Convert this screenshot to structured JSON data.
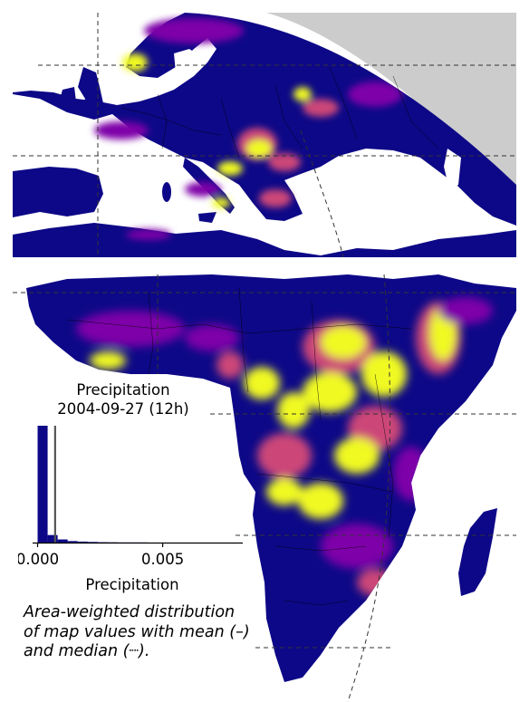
{
  "maps": {
    "top_region": "Europe",
    "bottom_region": "Africa",
    "colormap": "plasma",
    "colors": {
      "low": "#0d0887",
      "mid": "#7e03a8",
      "high": "#cc4778",
      "peak": "#f0f921",
      "ocean": "#ffffff",
      "outside_globe": "#cccccc",
      "borders": "#000000",
      "graticule": "#333333"
    }
  },
  "histogram": {
    "title_line1": "Precipitation",
    "title_line2": "2004-09-27 (12h)",
    "xlabel": "Precipitation",
    "tick_labels": [
      "0.000",
      "0.005"
    ]
  },
  "caption": {
    "line1": "Area-weighted distribution",
    "line2": "of map values with mean (–)",
    "line3": "and median (┈)."
  },
  "chart_data": {
    "type": "bar",
    "title": "Precipitation\n2004-09-27 (12h)",
    "xlabel": "Precipitation",
    "ylabel": "",
    "xlim": [
      -0.0002,
      0.0082
    ],
    "bin_edges": [
      0.0,
      0.0004,
      0.0008,
      0.0012,
      0.0016,
      0.002,
      0.0024,
      0.0028,
      0.0032,
      0.0036,
      0.004,
      0.0044,
      0.0048,
      0.0052,
      0.0056,
      0.006,
      0.0064,
      0.0068,
      0.0072,
      0.0076,
      0.008
    ],
    "values": [
      0.93,
      0.06,
      0.025,
      0.012,
      0.008,
      0.005,
      0.003,
      0.002,
      0.001,
      0.001,
      0.001,
      0.0,
      0.0,
      0.0,
      0.0,
      0.0,
      0.0,
      0.0,
      0.0,
      0.0
    ],
    "mean": 0.0007,
    "median": 0.0,
    "bar_color": "#0d0887",
    "mean_line_color": "#555555"
  }
}
